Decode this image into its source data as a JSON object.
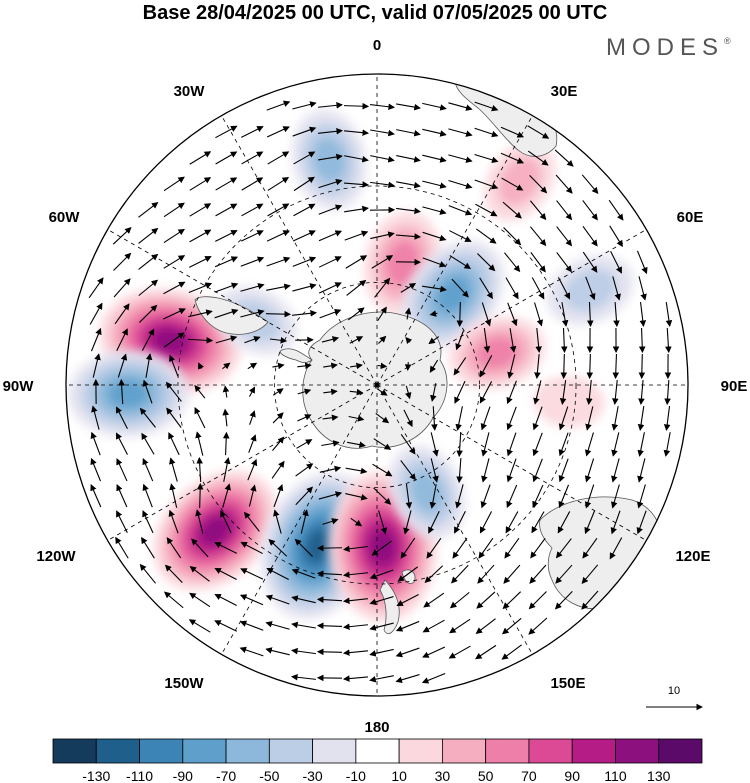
{
  "title": "Base 28/04/2025 00 UTC, valid 07/05/2025 00 UTC",
  "brand": "MODES",
  "brand_mark": "®",
  "longitude_labels": {
    "top": "0",
    "top_right": "30E",
    "right_upper": "60E",
    "right": "90E",
    "right_lower": "120E",
    "bottom_right": "150E",
    "bottom": "180",
    "bottom_left": "150W",
    "left_lower": "120W",
    "left": "90W",
    "left_upper": "60W",
    "top_left": "30W"
  },
  "reference_vector_label": "10",
  "colorbar": {
    "ticks": [
      "-130",
      "-110",
      "-90",
      "-70",
      "-50",
      "-30",
      "-10",
      "10",
      "30",
      "50",
      "70",
      "90",
      "110",
      "130"
    ],
    "colors": [
      "#143a5c",
      "#1f5f8c",
      "#3b84b5",
      "#5f9fcb",
      "#8eb8db",
      "#bccde6",
      "#e2e2ef",
      "#ffffff",
      "#fbd8de",
      "#f5aec0",
      "#ee7fa8",
      "#dc4a95",
      "#b51c86",
      "#8c117f",
      "#5c0a6a"
    ]
  },
  "map": {
    "projection": "south-polar-stereographic",
    "land_color": "#eeeeee",
    "anomalies": [
      {
        "lon": -78,
        "r": 0.68,
        "value": 115
      },
      {
        "lon": -92,
        "r": 0.8,
        "value": -85
      },
      {
        "lon": -132,
        "r": 0.7,
        "value": 110
      },
      {
        "lon": -160,
        "r": 0.55,
        "value": -125
      },
      {
        "lon": 178,
        "r": 0.52,
        "value": 125
      },
      {
        "lon": 155,
        "r": 0.38,
        "value": -55
      },
      {
        "lon": -12,
        "r": 0.74,
        "value": -60
      },
      {
        "lon": 12,
        "r": 0.4,
        "value": 65
      },
      {
        "lon": 40,
        "r": 0.38,
        "value": -85
      },
      {
        "lon": 35,
        "r": 0.8,
        "value": 40
      },
      {
        "lon": 66,
        "r": 0.75,
        "value": -45
      },
      {
        "lon": 75,
        "r": 0.4,
        "value": 55
      },
      {
        "lon": -62,
        "r": 0.44,
        "value": -40
      },
      {
        "lon": 95,
        "r": 0.62,
        "value": 20
      },
      {
        "lon": 125,
        "r": 0.85,
        "value": 25
      }
    ]
  }
}
